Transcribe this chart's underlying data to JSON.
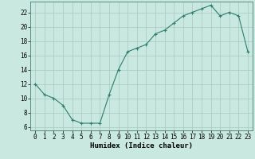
{
  "x": [
    0,
    1,
    2,
    3,
    4,
    5,
    6,
    7,
    8,
    9,
    10,
    11,
    12,
    13,
    14,
    15,
    16,
    17,
    18,
    19,
    20,
    21,
    22,
    23
  ],
  "y": [
    12,
    10.5,
    10,
    9,
    7,
    6.5,
    6.5,
    6.5,
    10.5,
    14,
    16.5,
    17,
    17.5,
    19,
    19.5,
    20.5,
    21.5,
    22,
    22.5,
    23,
    21.5,
    22,
    21.5,
    16.5
  ],
  "line_color": "#2e7d6e",
  "marker": "+",
  "marker_size": 3,
  "bg_color": "#c8e8e0",
  "grid_color": "#a8c8c0",
  "xlabel": "Humidex (Indice chaleur)",
  "xlim": [
    -0.5,
    23.5
  ],
  "ylim": [
    5.5,
    23.5
  ],
  "yticks": [
    6,
    8,
    10,
    12,
    14,
    16,
    18,
    20,
    22
  ],
  "xticks": [
    0,
    1,
    2,
    3,
    4,
    5,
    6,
    7,
    8,
    9,
    10,
    11,
    12,
    13,
    14,
    15,
    16,
    17,
    18,
    19,
    20,
    21,
    22,
    23
  ],
  "tick_fontsize": 5.5,
  "xlabel_fontsize": 6.5
}
